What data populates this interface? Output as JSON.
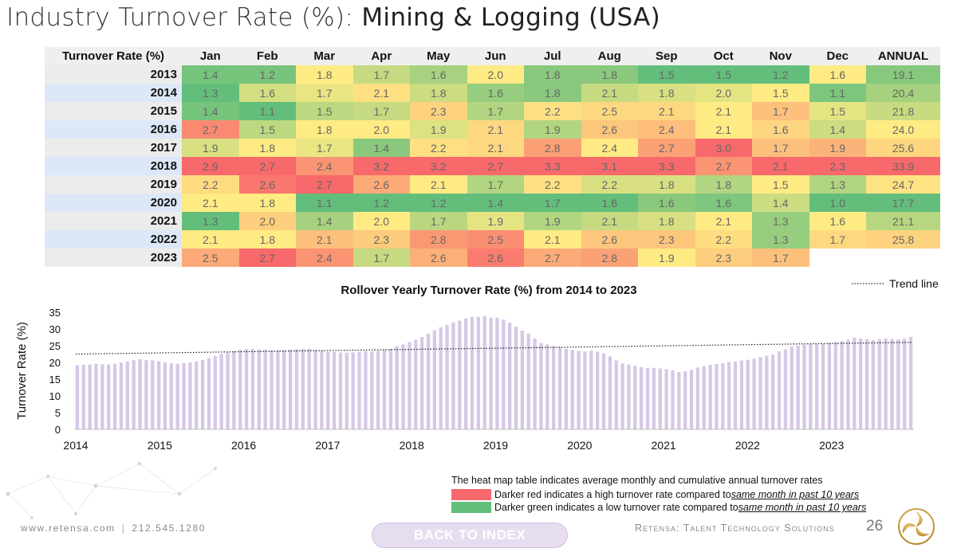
{
  "title": {
    "prefix": "Industry Turnover Rate (%): ",
    "subject": "Mining & Logging (USA)"
  },
  "heatmap": {
    "corner_label": "Turnover Rate (%)",
    "columns": [
      "Jan",
      "Feb",
      "Mar",
      "Apr",
      "May",
      "Jun",
      "Jul",
      "Aug",
      "Sep",
      "Oct",
      "Nov",
      "Dec",
      "ANNUAL"
    ],
    "rows": [
      {
        "year": "2013",
        "values": [
          "1.4",
          "1.2",
          "1.8",
          "1.7",
          "1.6",
          "2.0",
          "1.8",
          "1.8",
          "1.5",
          "1.5",
          "1.2",
          "1.6",
          "19.1"
        ]
      },
      {
        "year": "2014",
        "values": [
          "1.3",
          "1.6",
          "1.7",
          "2.1",
          "1.8",
          "1.6",
          "1.8",
          "2.1",
          "1.8",
          "2.0",
          "1.5",
          "1.1",
          "20.4"
        ]
      },
      {
        "year": "2015",
        "values": [
          "1.4",
          "1.1",
          "1.5",
          "1.7",
          "2.3",
          "1.7",
          "2.2",
          "2.5",
          "2.1",
          "2.1",
          "1.7",
          "1.5",
          "21.8"
        ]
      },
      {
        "year": "2016",
        "values": [
          "2.7",
          "1.5",
          "1.8",
          "2.0",
          "1.9",
          "2.1",
          "1.9",
          "2.6",
          "2.4",
          "2.1",
          "1.6",
          "1.4",
          "24.0"
        ]
      },
      {
        "year": "2017",
        "values": [
          "1.9",
          "1.8",
          "1.7",
          "1.4",
          "2.2",
          "2.1",
          "2.8",
          "2.4",
          "2.7",
          "3.0",
          "1.7",
          "1.9",
          "25.6"
        ]
      },
      {
        "year": "2018",
        "values": [
          "2.9",
          "2.7",
          "2.4",
          "3.2",
          "3.2",
          "2.7",
          "3.3",
          "3.1",
          "3.3",
          "2.7",
          "2.1",
          "2.3",
          "33.9"
        ]
      },
      {
        "year": "2019",
        "values": [
          "2.2",
          "2.6",
          "2.7",
          "2.6",
          "2.1",
          "1.7",
          "2.2",
          "2.2",
          "1.8",
          "1.8",
          "1.5",
          "1.3",
          "24.7"
        ]
      },
      {
        "year": "2020",
        "values": [
          "2.1",
          "1.8",
          "1.1",
          "1.2",
          "1.2",
          "1.4",
          "1.7",
          "1.6",
          "1.6",
          "1.6",
          "1.4",
          "1.0",
          "17.7"
        ]
      },
      {
        "year": "2021",
        "values": [
          "1.3",
          "2.0",
          "1.4",
          "2.0",
          "1.7",
          "1.9",
          "1.9",
          "2.1",
          "1.8",
          "2.1",
          "1.3",
          "1.6",
          "21.1"
        ]
      },
      {
        "year": "2022",
        "values": [
          "2.1",
          "1.8",
          "2.1",
          "2.3",
          "2.8",
          "2.5",
          "2.1",
          "2.6",
          "2.3",
          "2.2",
          "1.3",
          "1.7",
          "25.8"
        ]
      },
      {
        "year": "2023",
        "values": [
          "2.5",
          "2.7",
          "2.4",
          "1.7",
          "2.6",
          "2.6",
          "2.7",
          "2.8",
          "1.9",
          "2.3",
          "1.7",
          "",
          ""
        ]
      }
    ],
    "colors": {
      "low": "#63be7b",
      "mid": "#ffeb84",
      "high": "#f8696b"
    }
  },
  "chart_data": {
    "type": "bar",
    "title": "Rollover Yearly Turnover Rate (%) from 2014 to 2023",
    "ylabel": "Turnover Rate (%)",
    "xlabel": "",
    "ylim": [
      0,
      35
    ],
    "yticks": [
      0,
      5,
      10,
      15,
      20,
      25,
      30,
      35
    ],
    "xticks": [
      "2014",
      "2015",
      "2016",
      "2017",
      "2018",
      "2019",
      "2020",
      "2021",
      "2022",
      "2023"
    ],
    "series": [
      {
        "values": [
          19.2,
          19.3,
          19.4,
          19.6,
          19.5,
          19.4,
          19.6,
          20.0,
          20.3,
          20.7,
          21.0,
          20.7,
          20.6,
          20.3,
          20.0,
          19.7,
          19.6,
          19.8,
          20.0,
          20.3,
          20.7,
          21.3,
          21.9,
          22.6,
          23.0,
          23.4,
          23.8,
          24.0,
          24.0,
          23.9,
          23.8,
          23.7,
          23.6,
          23.7,
          23.9,
          24.0,
          24.0,
          24.1,
          23.7,
          23.6,
          23.2,
          23.1,
          23.0,
          22.9,
          23.0,
          23.2,
          23.4,
          23.3,
          23.5,
          23.8,
          24.1,
          24.8,
          25.4,
          26.1,
          26.8,
          27.6,
          28.6,
          29.6,
          30.5,
          31.2,
          32.0,
          32.5,
          33.1,
          33.6,
          33.6,
          33.9,
          33.4,
          33.4,
          32.8,
          31.9,
          30.7,
          29.5,
          28.6,
          27.1,
          25.8,
          25.4,
          24.9,
          24.6,
          24.1,
          23.8,
          23.4,
          23.3,
          23.5,
          23.2,
          22.7,
          21.8,
          20.6,
          19.7,
          19.4,
          19.0,
          18.6,
          18.3,
          18.4,
          18.2,
          18.0,
          17.7,
          17.1,
          17.3,
          17.8,
          18.5,
          18.9,
          19.3,
          19.5,
          19.8,
          20.1,
          20.3,
          20.6,
          20.8,
          21.1,
          21.6,
          22.0,
          22.4,
          23.3,
          23.9,
          24.7,
          25.0,
          25.3,
          25.5,
          25.5,
          25.5,
          25.8,
          26.1,
          26.4,
          26.8,
          27.4,
          27.1,
          26.9,
          26.7,
          27.0,
          27.2,
          27.0,
          26.9,
          27.1,
          27.6
        ]
      }
    ],
    "trend_line": {
      "name": "Trend line",
      "start": 22.5,
      "end": 26.0
    },
    "grid": false,
    "legend": "top-right"
  },
  "legend": {
    "note": "The heat map table indicates average monthly and cumulative annual turnover rates",
    "red_text": "Darker red indicates a high turnover rate compared to ",
    "red_em": "same month in past 10 years",
    "green_text": "Darker green indicates a low turnover rate compared to ",
    "green_em": "same month in past 10 years",
    "red_color": "#f8696b",
    "green_color": "#63be7b"
  },
  "footer": {
    "website": "www.retensa.com",
    "phone": "212.545.1280",
    "back_button": "BACK TO INDEX",
    "company": "Retensa: Talent Technology Solutions",
    "page": "26",
    "logo_icon": "retensa-triskele-logo"
  }
}
